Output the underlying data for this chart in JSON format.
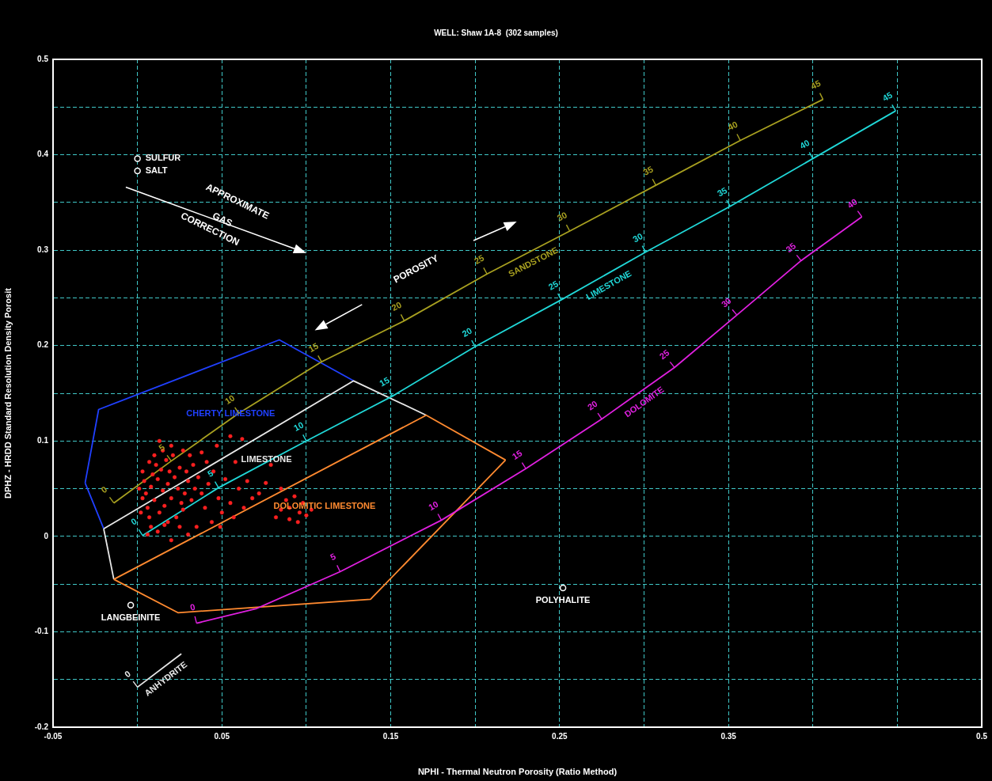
{
  "chart_data": {
    "type": "scatter",
    "title": "WELL: Shaw 1A-8  (302 samples)",
    "xlabel": "NPHI - Thermal Neutron Porosity (Ratio Method)",
    "ylabel": "DPHZ - HRDD Standard Resolution Density Porosit",
    "xlim": [
      -0.05,
      0.5
    ],
    "ylim": [
      -0.2,
      0.5
    ],
    "xticks": [
      -0.05,
      {
        "value": 0,
        "label": null
      },
      0.05,
      {
        "value": 0.1,
        "label": null
      },
      0.15,
      {
        "value": 0.2,
        "label": null
      },
      0.25,
      {
        "value": 0.3,
        "label": null
      },
      0.35,
      {
        "value": 0.4,
        "label": null
      },
      {
        "value": 0.45,
        "label": null
      },
      0.5
    ],
    "yticks": [
      -0.2,
      {
        "value": -0.15,
        "label": null
      },
      -0.1,
      {
        "value": -0.05,
        "label": null
      },
      0,
      {
        "value": 0.05,
        "label": null
      },
      0.1,
      {
        "value": 0.15,
        "label": null
      },
      0.2,
      {
        "value": 0.25,
        "label": null
      },
      0.3,
      {
        "value": 0.35,
        "label": null
      },
      0.4,
      {
        "value": 0.45,
        "label": null
      },
      0.5
    ],
    "grid": true,
    "annotations": [
      "APPROXIMATE",
      "GAS",
      "CORRECTION",
      "POROSITY",
      "CHERTY LIMESTONE",
      "LIMESTONE",
      "DOLOMITIC LIMESTONE",
      {
        "text": "0",
        "x": -0.014,
        "y": 0.035
      },
      {
        "text": "5",
        "x": 0.02,
        "y": 0.079
      },
      {
        "text": "10",
        "x": 0.06,
        "y": 0.129
      },
      {
        "text": "15",
        "x": 0.109,
        "y": 0.183
      },
      {
        "text": "20",
        "x": 0.158,
        "y": 0.226
      },
      {
        "text": "25",
        "x": 0.207,
        "y": 0.275
      },
      {
        "text": "30",
        "x": 0.256,
        "y": 0.32
      },
      {
        "text": "35",
        "x": 0.307,
        "y": 0.368
      },
      {
        "text": "40",
        "x": 0.357,
        "y": 0.415
      },
      {
        "text": "45",
        "x": 0.406,
        "y": 0.458
      },
      {
        "text": "0",
        "x": 0.003,
        "y": 0.001
      },
      {
        "text": "5",
        "x": 0.048,
        "y": 0.051
      },
      {
        "text": "10",
        "x": 0.1,
        "y": 0.1
      },
      {
        "text": "15",
        "x": 0.151,
        "y": 0.147
      },
      {
        "text": "20",
        "x": 0.2,
        "y": 0.199
      },
      {
        "text": "25",
        "x": 0.251,
        "y": 0.248
      },
      {
        "text": "30",
        "x": 0.301,
        "y": 0.298
      },
      {
        "text": "35",
        "x": 0.351,
        "y": 0.346
      },
      {
        "text": "40",
        "x": 0.4,
        "y": 0.396
      },
      {
        "text": "45",
        "x": 0.449,
        "y": 0.446
      },
      {
        "text": "0",
        "x": 0.035,
        "y": -0.091
      },
      {
        "text": "5",
        "x": 0.12,
        "y": -0.037
      },
      {
        "text": "10",
        "x": 0.18,
        "y": 0.017
      },
      {
        "text": "15",
        "x": 0.23,
        "y": 0.071
      },
      {
        "text": "20",
        "x": 0.275,
        "y": 0.123
      },
      {
        "text": "25",
        "x": 0.318,
        "y": 0.177
      },
      {
        "text": "30",
        "x": 0.355,
        "y": 0.232
      },
      {
        "text": "35",
        "x": 0.393,
        "y": 0.289
      },
      {
        "text": "40",
        "x": 0.429,
        "y": 0.335
      },
      {
        "text": "0",
        "x": 0.0,
        "y": -0.158
      }
    ],
    "series": [
      {
        "type": "line",
        "color": "#2040ff",
        "marker": "none",
        "x": [
          -0.031,
          -0.02
        ],
        "values": [
          0.056,
          0.008
        ]
      },
      {
        "type": "line",
        "color": "#2040ff",
        "marker": "none",
        "x": [
          -0.031,
          -0.023,
          0.084,
          0.128
        ],
        "values": [
          0.056,
          0.133,
          0.206,
          0.163
        ]
      },
      {
        "type": "line",
        "color": "#e8e8e8",
        "marker": "none",
        "x": [
          -0.02,
          0.128,
          0.171
        ],
        "values": [
          0.008,
          0.163,
          0.127
        ]
      },
      {
        "type": "line",
        "color": "#e8e8e8",
        "marker": "none",
        "x": [
          -0.02,
          -0.014
        ],
        "values": [
          0.008,
          -0.045
        ]
      },
      {
        "type": "line",
        "color": "#ff8a30",
        "marker": "none",
        "x": [
          -0.014,
          0.171,
          0.218
        ],
        "values": [
          -0.045,
          0.127,
          0.08
        ]
      },
      {
        "type": "line",
        "color": "#ff8a30",
        "marker": "none",
        "x": [
          -0.014,
          0.024,
          0.138,
          0.218
        ],
        "values": [
          -0.045,
          -0.08,
          -0.066,
          0.08
        ]
      },
      {
        "type": "line",
        "name": "SANDSTONE",
        "color": "#a8a020",
        "marker": "none",
        "x": [
          -0.014,
          0.02,
          0.06,
          0.109,
          0.158,
          0.207,
          0.256,
          0.307,
          0.357,
          0.406
        ],
        "values": [
          0.035,
          0.079,
          0.129,
          0.183,
          0.226,
          0.275,
          0.32,
          0.368,
          0.415,
          0.458
        ]
      },
      {
        "type": "line",
        "name": "LIMESTONE",
        "color": "#20d8d8",
        "marker": "none",
        "x": [
          0.003,
          0.048,
          0.1,
          0.151,
          0.2,
          0.251,
          0.301,
          0.351,
          0.4,
          0.449
        ],
        "values": [
          0.001,
          0.051,
          0.1,
          0.147,
          0.199,
          0.248,
          0.298,
          0.346,
          0.396,
          0.446
        ]
      },
      {
        "type": "line",
        "name": "DOLOMITE",
        "color": "#e020e0",
        "marker": "none",
        "x": [
          0.035,
          0.07,
          0.12,
          0.18,
          0.23,
          0.275,
          0.318,
          0.355,
          0.393,
          0.429
        ],
        "values": [
          -0.091,
          -0.076,
          -0.037,
          0.017,
          0.071,
          0.123,
          0.177,
          0.232,
          0.289,
          0.335
        ]
      },
      {
        "type": "line",
        "name": "ANHYDRITE",
        "color": "#e8e8e8",
        "marker": "none",
        "x": [
          0.0,
          0.026
        ],
        "values": [
          -0.158,
          -0.123
        ]
      },
      {
        "name": "SULFUR",
        "color": "#ffffff",
        "marker": "circle",
        "x": [
          0.0
        ],
        "values": [
          0.396
        ]
      },
      {
        "name": "SALT",
        "color": "#ffffff",
        "marker": "circle",
        "x": [
          0.0
        ],
        "values": [
          0.383
        ]
      },
      {
        "name": "LANGBEINITE",
        "color": "#ffffff",
        "marker": "circle",
        "x": [
          -0.004
        ],
        "values": [
          -0.072
        ]
      },
      {
        "name": "POLYHALITE",
        "color": "#ffffff",
        "marker": "circle",
        "x": [
          0.252
        ],
        "values": [
          -0.054
        ]
      },
      {
        "color": "#ff2020",
        "marker": "circle",
        "x": [
          0.005,
          0.008,
          0.01,
          0.012,
          0.006,
          0.015,
          0.018,
          0.014,
          0.011,
          0.009,
          0.007,
          0.013,
          0.016,
          0.02,
          0.022,
          0.019,
          0.017,
          0.024,
          0.026,
          0.028,
          0.03,
          0.025,
          0.021,
          0.015,
          0.01,
          0.004,
          0.003,
          0.008,
          0.012,
          0.018,
          0.023,
          0.027,
          0.032,
          0.034,
          0.029,
          0.033,
          0.036,
          0.038,
          0.04,
          0.042,
          0.045,
          0.048,
          0.05,
          0.044,
          0.035,
          0.013,
          0.02,
          0.027,
          0.038,
          0.047,
          0.055,
          0.062,
          0.058,
          0.052,
          0.06,
          0.065,
          0.068,
          0.055,
          0.057,
          0.049,
          0.03,
          0.02,
          0.025,
          0.006,
          0.002,
          0.001,
          0.003,
          0.007,
          0.016,
          0.031,
          0.041,
          0.076,
          0.079,
          0.085,
          0.088,
          0.09,
          0.093,
          0.096,
          0.1,
          0.098,
          0.085,
          0.082,
          0.09,
          0.103,
          0.095,
          0.072,
          0.063
        ],
        "values": [
          0.045,
          0.052,
          0.038,
          0.06,
          0.03,
          0.048,
          0.055,
          0.07,
          0.075,
          0.065,
          0.02,
          0.025,
          0.032,
          0.04,
          0.062,
          0.068,
          0.08,
          0.05,
          0.035,
          0.045,
          0.058,
          0.072,
          0.085,
          0.09,
          0.085,
          0.058,
          0.04,
          0.01,
          0.005,
          0.015,
          0.02,
          0.028,
          0.038,
          0.05,
          0.068,
          0.075,
          0.062,
          0.045,
          0.03,
          0.055,
          0.068,
          0.04,
          0.025,
          0.015,
          0.01,
          0.1,
          0.095,
          0.09,
          0.088,
          0.095,
          0.105,
          0.102,
          0.078,
          0.06,
          0.05,
          0.058,
          0.04,
          0.035,
          0.02,
          0.01,
          0.002,
          -0.004,
          0.01,
          0.002,
          0.025,
          0.05,
          0.068,
          0.078,
          0.012,
          0.085,
          0.078,
          0.056,
          0.075,
          0.05,
          0.038,
          0.03,
          0.042,
          0.025,
          0.022,
          0.035,
          0.028,
          0.02,
          0.018,
          0.028,
          0.015,
          0.045,
          0.03
        ]
      }
    ]
  }
}
